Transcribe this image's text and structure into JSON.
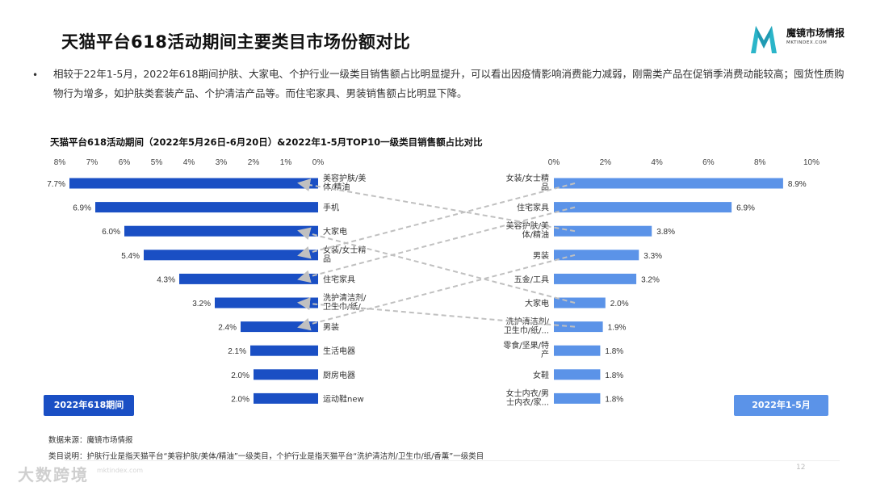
{
  "page": {
    "title": "天猫平台618活动期间主要类目市场份额对比",
    "logo_name": "魔镜市场情报",
    "logo_sub": "MKTINDEX.COM",
    "bullet": "相较于22年1-5月，2022年618期间护肤、大家电、个护行业一级类目销售额占比明显提升，可以看出因疫情影响消费能力减弱，刚需类产品在促销季消费动能较高；囤货性质购物行为增多，如护肤类套装产品、个护清洁产品等。而住宅家具、男装销售额占比明显下降。",
    "footnote_source": "数据来源：魔镜市场情报",
    "footnote_note": "类目说明：护肤行业是指天猫平台“美容护肤/美体/精油”一级类目，个护行业是指天猫平台“洗护清洁剂/卫生巾/纸/香薰”一级类目",
    "watermark": "大数跨境",
    "watermark_url": "mktindex.com",
    "page_number": "12"
  },
  "chart_data": {
    "type": "bar",
    "title": "天猫平台618活动期间（2022年5月26日-6月20日）&2022年1-5月TOP10一级类目销售额占比对比",
    "unit": "%",
    "colors": {
      "left": "#1a4fc4",
      "right": "#5b93e8",
      "connector": "#c0c0c0"
    },
    "series": [
      {
        "name": "2022年618期间",
        "side": "left",
        "xlim": [
          0,
          8
        ],
        "ticks": [
          "8%",
          "7%",
          "6%",
          "5%",
          "4%",
          "3%",
          "2%",
          "1%",
          "0%"
        ],
        "categories": [
          [
            "美容护肤/美",
            "体/精油"
          ],
          [
            "手机"
          ],
          [
            "大家电"
          ],
          [
            "女装/女士精",
            "品"
          ],
          [
            "住宅家具"
          ],
          [
            "洗护清洁剂/",
            "卫生巾/纸/..."
          ],
          [
            "男装"
          ],
          [
            "生活电器"
          ],
          [
            "厨房电器"
          ],
          [
            "运动鞋new"
          ]
        ],
        "values": [
          7.7,
          6.9,
          6.0,
          5.4,
          4.3,
          3.2,
          2.4,
          2.1,
          2.0,
          2.0
        ],
        "labels": [
          "7.7%",
          "6.9%",
          "6.0%",
          "5.4%",
          "4.3%",
          "3.2%",
          "2.4%",
          "2.1%",
          "2.0%",
          "2.0%"
        ]
      },
      {
        "name": "2022年1-5月",
        "side": "right",
        "xlim": [
          0,
          10
        ],
        "ticks": [
          "0%",
          "2%",
          "4%",
          "6%",
          "8%",
          "10%"
        ],
        "categories": [
          [
            "女装/女士精",
            "品"
          ],
          [
            "住宅家具"
          ],
          [
            "美容护肤/美",
            "体/精油"
          ],
          [
            "男装"
          ],
          [
            "五金/工具"
          ],
          [
            "大家电"
          ],
          [
            "洗护清洁剂/",
            "卫生巾/纸/..."
          ],
          [
            "零食/坚果/特",
            "产"
          ],
          [
            "女鞋"
          ],
          [
            "女士内衣/男",
            "士内衣/家..."
          ]
        ],
        "values": [
          8.9,
          6.9,
          3.8,
          3.3,
          3.2,
          2.0,
          1.9,
          1.8,
          1.8,
          1.8
        ],
        "labels": [
          "8.9%",
          "6.9%",
          "3.8%",
          "3.3%",
          "3.2%",
          "2.0%",
          "1.9%",
          "1.8%",
          "1.8%",
          "1.8%"
        ]
      }
    ],
    "connections": [
      {
        "from_right_rank": 3,
        "to_left_rank": 1,
        "category": "美容护肤/美体/精油"
      },
      {
        "from_right_rank": 6,
        "to_left_rank": 3,
        "category": "大家电"
      },
      {
        "from_right_rank": 1,
        "to_left_rank": 4,
        "category": "女装/女士精品"
      },
      {
        "from_right_rank": 2,
        "to_left_rank": 5,
        "category": "住宅家具"
      },
      {
        "from_right_rank": 7,
        "to_left_rank": 6,
        "category": "洗护清洁剂/卫生巾/纸/..."
      },
      {
        "from_right_rank": 4,
        "to_left_rank": 7,
        "category": "男装"
      }
    ]
  }
}
